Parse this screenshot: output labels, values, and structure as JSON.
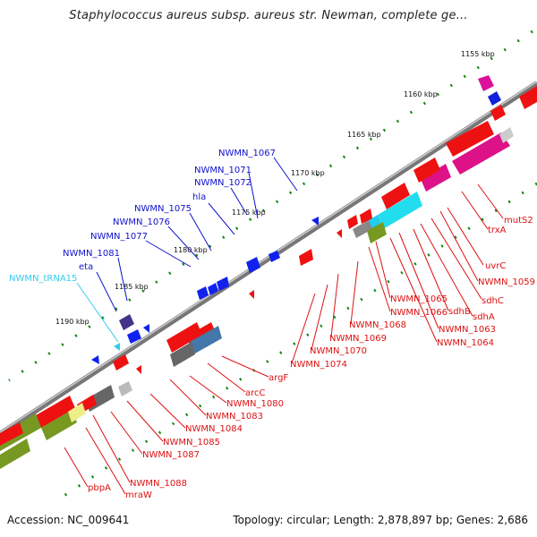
{
  "title": "Staphylococcus aureus subsp. aureus str. Newman, complete ge...",
  "footer": {
    "accession": "Accession: NC_009641",
    "summary": "Topology: circular; Length: 2,878,897 bp; Genes: 2,686"
  },
  "colors": {
    "cds": "#ee1111",
    "trna": "#33ccee",
    "reverse_strand_label": "#1111cc",
    "forward_strand_label": "#dd1111",
    "tick": "#118811",
    "backbone": "#888888"
  },
  "ticks": [
    {
      "label": "1155 kbp",
      "pos": 0
    },
    {
      "label": "1160 kbp",
      "pos": 1
    },
    {
      "label": "1165 kbp",
      "pos": 2
    },
    {
      "label": "1170 kbp",
      "pos": 3
    },
    {
      "label": "1175 kbp",
      "pos": 4
    },
    {
      "label": "1180 kbp",
      "pos": 5
    },
    {
      "label": "1185 kbp",
      "pos": 6
    },
    {
      "label": "1190 kbp",
      "pos": 7
    }
  ],
  "upper_labels": [
    {
      "text": "NWMN_1067",
      "color": "blue"
    },
    {
      "text": "NWMN_1071",
      "color": "blue"
    },
    {
      "text": "NWMN_1072",
      "color": "blue"
    },
    {
      "text": "hla",
      "color": "blue"
    },
    {
      "text": "NWMN_1075",
      "color": "blue"
    },
    {
      "text": "NWMN_1076",
      "color": "blue"
    },
    {
      "text": "NWMN_1077",
      "color": "blue"
    },
    {
      "text": "NWMN_1081",
      "color": "blue"
    },
    {
      "text": "eta",
      "color": "blue"
    },
    {
      "text": "NWMN_tRNA15",
      "color": "cyan"
    }
  ],
  "lower_labels": [
    {
      "text": "mutS2"
    },
    {
      "text": "trxA"
    },
    {
      "text": "uvrC"
    },
    {
      "text": "NWMN_1059"
    },
    {
      "text": "sdhC"
    },
    {
      "text": "sdhA"
    },
    {
      "text": "sdhB"
    },
    {
      "text": "NWMN_1063"
    },
    {
      "text": "NWMN_1064"
    },
    {
      "text": "NWMN_1065"
    },
    {
      "text": "NWMN_1066"
    },
    {
      "text": "NWMN_1068"
    },
    {
      "text": "NWMN_1069"
    },
    {
      "text": "NWMN_1070"
    },
    {
      "text": "NWMN_1074"
    },
    {
      "text": "argF"
    },
    {
      "text": "arcC"
    },
    {
      "text": "NWMN_1080"
    },
    {
      "text": "NWMN_1083"
    },
    {
      "text": "NWMN_1084"
    },
    {
      "text": "NWMN_1085"
    },
    {
      "text": "NWMN_1087"
    },
    {
      "text": "NWMN_1088"
    },
    {
      "text": "mraW"
    },
    {
      "text": "pbpA"
    }
  ]
}
